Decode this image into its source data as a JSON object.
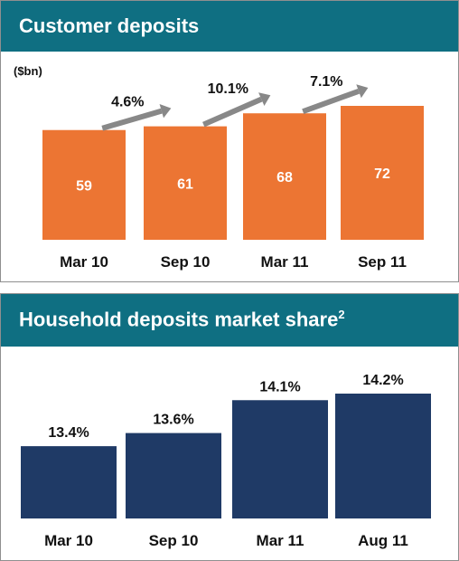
{
  "colors": {
    "header": "#0f6f82",
    "orange": "#ec7533",
    "navy": "#1f3a66",
    "arrow": "#888888"
  },
  "chart_data": [
    {
      "type": "bar",
      "title": "Customer deposits",
      "unit": "($bn)",
      "categories": [
        "Mar 10",
        "Sep 10",
        "Mar 11",
        "Sep 11"
      ],
      "values": [
        59,
        61,
        68,
        72
      ],
      "growth": [
        "4.6%",
        "10.1%",
        "7.1%"
      ],
      "ylim": [
        0,
        72
      ]
    },
    {
      "type": "bar",
      "title": "Household deposits market share",
      "title_sup": "2",
      "categories": [
        "Mar 10",
        "Sep 10",
        "Mar 11",
        "Aug 11"
      ],
      "values": [
        13.4,
        13.6,
        14.1,
        14.2
      ],
      "labels": [
        "13.4%",
        "13.6%",
        "14.1%",
        "14.2%"
      ],
      "ylim": [
        12.3,
        14.2
      ]
    }
  ]
}
